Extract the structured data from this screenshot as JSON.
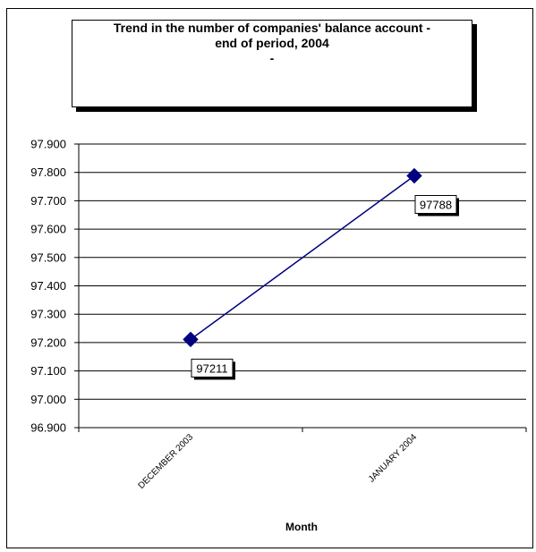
{
  "chart_data": {
    "type": "line",
    "title_lines": [
      "Trend in the number of companies' balance account -",
      "end of period, 2004",
      "-"
    ],
    "xlabel": "Month",
    "ylabel": "",
    "categories": [
      "DECEMBER 2003",
      "JANUARY 2004"
    ],
    "series": [
      {
        "values": [
          97211,
          97788
        ],
        "color": "#000080"
      }
    ],
    "data_labels": [
      "97211",
      "97788"
    ],
    "ylim": [
      96900,
      97900
    ],
    "y_ticks": [
      96900,
      97000,
      97100,
      97200,
      97300,
      97400,
      97500,
      97600,
      97700,
      97800,
      97900
    ],
    "y_tick_labels": [
      "96.900",
      "97.000",
      "97.100",
      "97.200",
      "97.300",
      "97.400",
      "97.500",
      "97.600",
      "97.700",
      "97.800",
      "97.900"
    ],
    "grid": true,
    "legend": "none",
    "marker": "diamond"
  }
}
